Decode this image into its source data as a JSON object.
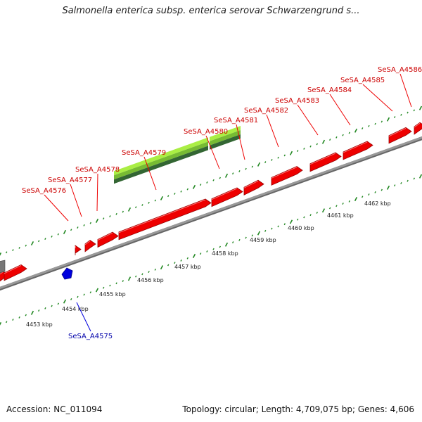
{
  "header": {
    "title": "Salmonella enterica subsp. enterica serovar Schwarzengrund s..."
  },
  "footer": {
    "accession": "Accession: NC_011094",
    "stats": "Topology: circular; Length: 4,709,075 bp; Genes: 4,606"
  },
  "colors": {
    "forward_gene": "#ee0000",
    "forward_gene_dark": "#990000",
    "reverse_gene": "#0000dd",
    "highlight_light": "#aaee44",
    "highlight_dark": "#336633",
    "ticks": "#228822",
    "backbone": "#999999",
    "label_forward": "#cc0000",
    "label_reverse": "#0000aa"
  },
  "genome_map": {
    "scale_labels": [
      "4453 kbp",
      "4454 kbp",
      "4455 kbp",
      "4456 kbp",
      "4457 kbp",
      "4458 kbp",
      "4459 kbp",
      "4460 kbp",
      "4461 kbp",
      "4462 kbp"
    ],
    "gene_labels": [
      {
        "text": "SeSA_A4576",
        "strand": "forward"
      },
      {
        "text": "SeSA_A4577",
        "strand": "forward"
      },
      {
        "text": "SeSA_A4578",
        "strand": "forward"
      },
      {
        "text": "SeSA_A4579",
        "strand": "forward"
      },
      {
        "text": "SeSA_A4580",
        "strand": "forward"
      },
      {
        "text": "SeSA_A4581",
        "strand": "forward"
      },
      {
        "text": "SeSA_A4582",
        "strand": "forward"
      },
      {
        "text": "SeSA_A4583",
        "strand": "forward"
      },
      {
        "text": "SeSA_A4584",
        "strand": "forward"
      },
      {
        "text": "SeSA_A4585",
        "strand": "forward"
      },
      {
        "text": "SeSA_A4586",
        "strand": "forward"
      },
      {
        "text": "SeSA_A4575",
        "strand": "reverse"
      }
    ]
  }
}
